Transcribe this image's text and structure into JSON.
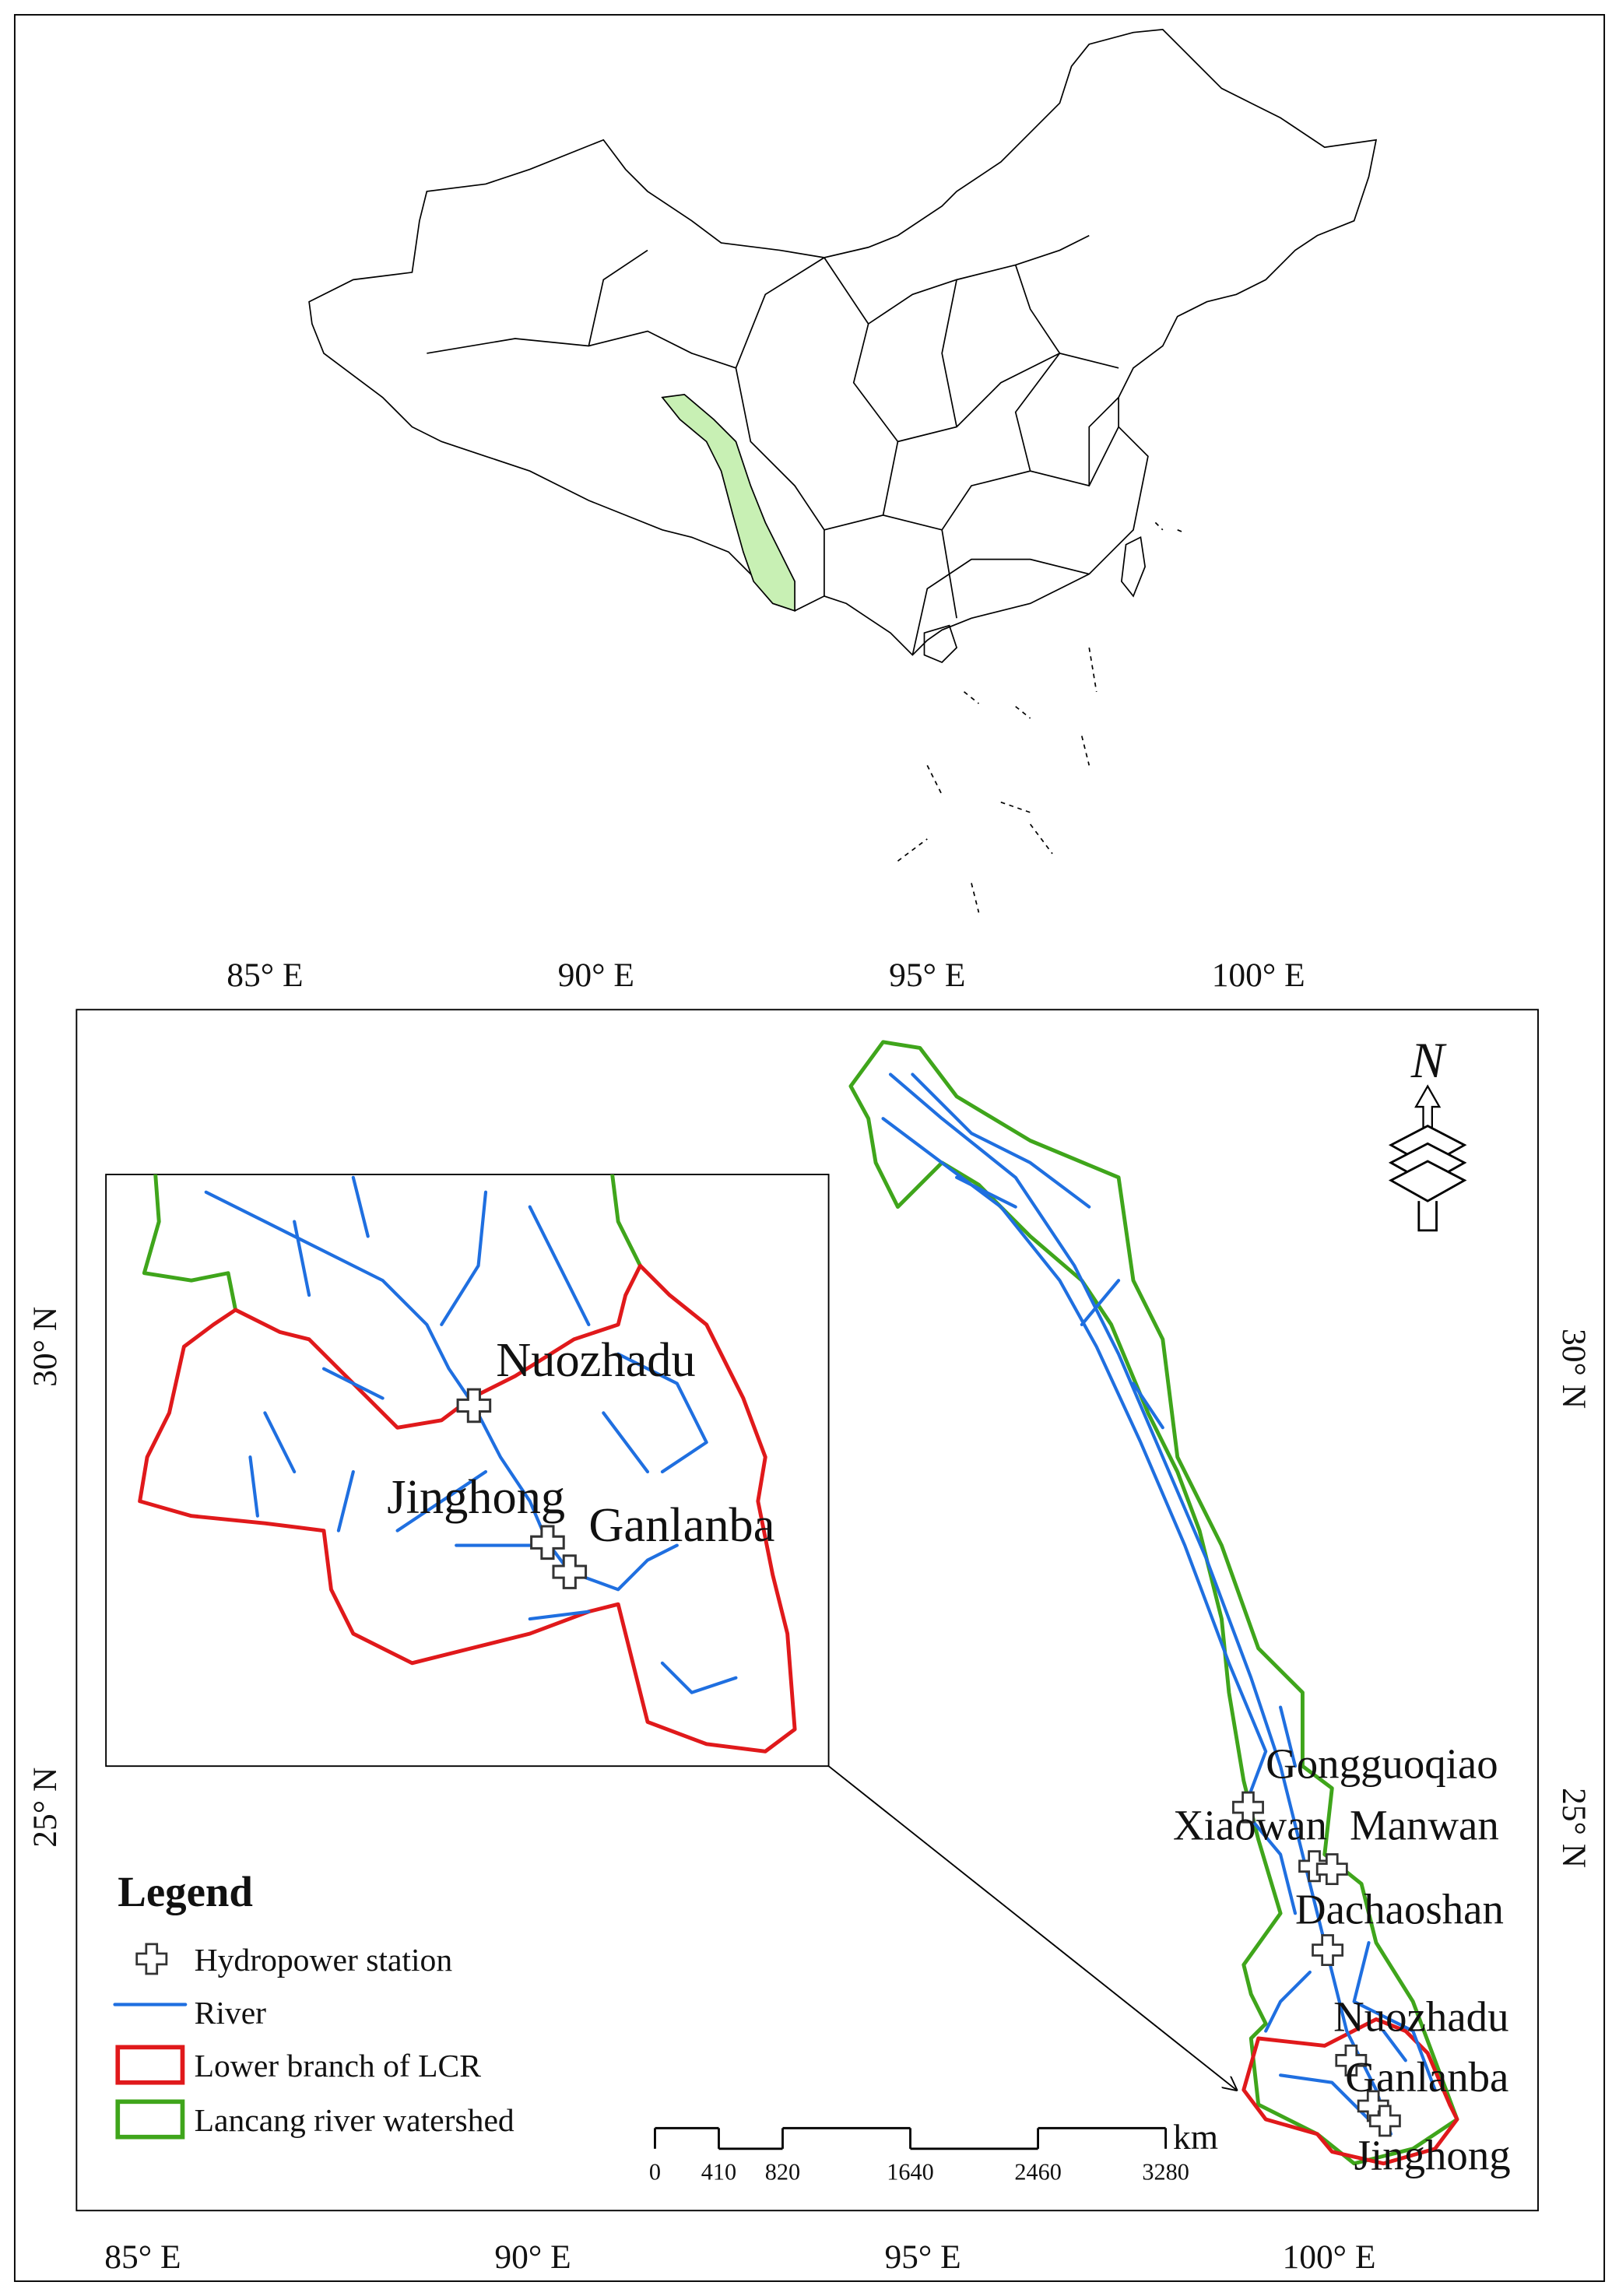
{
  "axes": {
    "top": [
      "85° E",
      "90° E",
      "95° E",
      "100° E"
    ],
    "bottom": [
      "85° E",
      "90° E",
      "95° E",
      "100° E"
    ],
    "left": [
      "30° N",
      "25° N"
    ],
    "right": [
      "30° N",
      "25° N"
    ]
  },
  "north_arrow": "N",
  "stations": [
    "Gongguoqiao",
    "Xiaowan",
    "Manwan",
    "Dachaoshan",
    "Nuozhadu",
    "Ganlanba",
    "Jinghong"
  ],
  "inset": {
    "stations": [
      "Nuozhadu",
      "Jinghong",
      "Ganlanba"
    ]
  },
  "legend": {
    "title": "Legend",
    "items": [
      "Hydropower station",
      "River",
      "Lower branch of LCR",
      "Lancang river watershed"
    ]
  },
  "scale_bar": {
    "unit": "km",
    "ticks": [
      0,
      410,
      820,
      1640,
      2460,
      3280
    ]
  }
}
